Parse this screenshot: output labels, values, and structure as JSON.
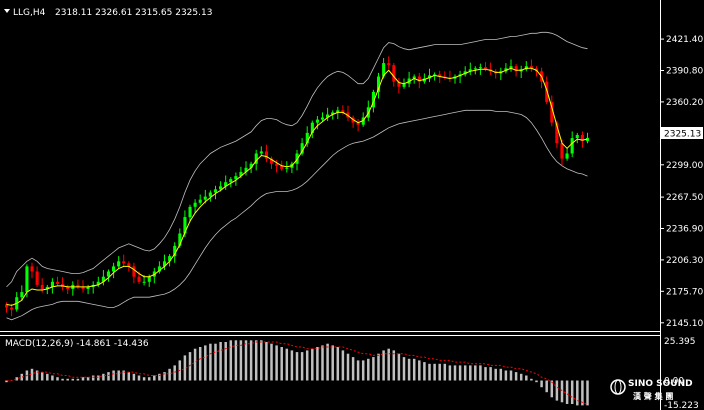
{
  "header": {
    "symbol_tf": "LLG,H4",
    "ohlc": "2318.11 2326.61 2315.65 2325.13"
  },
  "price_axis": {
    "ticks": [
      "2421.40",
      "2390.80",
      "2360.20",
      "2329.60",
      "2299.00",
      "2267.50",
      "2236.90",
      "2206.30",
      "2175.70",
      "2145.10"
    ],
    "current_price_label": "2325.13"
  },
  "macd": {
    "label": "MACD(12,26,9) -14.861 -14.436",
    "ticks": [
      "25.395",
      "0.00",
      "-15.223"
    ]
  },
  "logo": {
    "name": "SINO SOUND",
    "cn": "漢 聲 集 團"
  },
  "colors": {
    "background": "#000000",
    "axis": "#ffffff",
    "bull": "#00ff00",
    "bear": "#ff0000",
    "ma": "#ffff00",
    "bands": "#c0c0c0",
    "macd_hist": "#c0c0c0",
    "macd_signal": "#ff0000"
  },
  "chart_data": [
    {
      "type": "candlestick",
      "title": "LLG,H4",
      "y_range": [
        2140,
        2440
      ],
      "series": {
        "close": [
          2160,
          2158,
          2170,
          2175,
          2200,
          2195,
          2182,
          2178,
          2180,
          2185,
          2183,
          2180,
          2178,
          2182,
          2180,
          2178,
          2180,
          2182,
          2185,
          2190,
          2195,
          2200,
          2205,
          2203,
          2200,
          2190,
          2185,
          2185,
          2190,
          2195,
          2200,
          2205,
          2210,
          2220,
          2232,
          2248,
          2258,
          2262,
          2265,
          2268,
          2272,
          2275,
          2278,
          2282,
          2285,
          2288,
          2292,
          2296,
          2300,
          2310,
          2312,
          2305,
          2300,
          2298,
          2295,
          2296,
          2300,
          2310,
          2320,
          2330,
          2340,
          2343,
          2345,
          2348,
          2350,
          2352,
          2350,
          2345,
          2340,
          2338,
          2345,
          2355,
          2370,
          2385,
          2398,
          2396,
          2380,
          2375,
          2378,
          2383,
          2385,
          2380,
          2383,
          2386,
          2387,
          2385,
          2384,
          2383,
          2385,
          2387,
          2390,
          2392,
          2393,
          2394,
          2392,
          2390,
          2388,
          2390,
          2393,
          2395,
          2390,
          2392,
          2395,
          2393,
          2390,
          2380,
          2360,
          2340,
          2320,
          2305,
          2310,
          2325,
          2328,
          2322,
          2325.13
        ],
        "ma": [
          2163,
          2162,
          2164,
          2167,
          2175,
          2178,
          2177,
          2177,
          2178,
          2180,
          2181,
          2181,
          2180,
          2180,
          2180,
          2180,
          2180,
          2181,
          2182,
          2185,
          2189,
          2194,
          2198,
          2200,
          2200,
          2197,
          2193,
          2190,
          2190,
          2192,
          2196,
          2200,
          2205,
          2212,
          2221,
          2233,
          2244,
          2252,
          2258,
          2263,
          2267,
          2271,
          2274,
          2278,
          2281,
          2284,
          2288,
          2292,
          2296,
          2303,
          2308,
          2307,
          2304,
          2301,
          2298,
          2297,
          2298,
          2304,
          2312,
          2321,
          2331,
          2337,
          2341,
          2345,
          2348,
          2350,
          2350,
          2347,
          2343,
          2340,
          2342,
          2349,
          2360,
          2373,
          2386,
          2391,
          2385,
          2379,
          2378,
          2380,
          2383,
          2381,
          2382,
          2384,
          2386,
          2385,
          2384,
          2383,
          2384,
          2386,
          2388,
          2390,
          2391,
          2392,
          2392,
          2391,
          2389,
          2389,
          2391,
          2393,
          2391,
          2391,
          2393,
          2393,
          2391,
          2385,
          2372,
          2355,
          2337,
          2320,
          2315,
          2320,
          2324,
          2323,
          2324
        ],
        "upper_band": [
          2180,
          2185,
          2195,
          2200,
          2205,
          2208,
          2205,
          2200,
          2198,
          2197,
          2196,
          2195,
          2194,
          2193,
          2193,
          2194,
          2196,
          2198,
          2202,
          2206,
          2210,
          2214,
          2218,
          2220,
          2222,
          2220,
          2218,
          2216,
          2215,
          2217,
          2222,
          2228,
          2236,
          2246,
          2258,
          2272,
          2284,
          2293,
          2300,
          2305,
          2310,
          2313,
          2316,
          2318,
          2320,
          2322,
          2325,
          2328,
          2331,
          2337,
          2342,
          2344,
          2344,
          2343,
          2340,
          2338,
          2337,
          2340,
          2347,
          2356,
          2366,
          2374,
          2380,
          2385,
          2388,
          2390,
          2389,
          2386,
          2382,
          2378,
          2378,
          2383,
          2393,
          2403,
          2413,
          2418,
          2417,
          2414,
          2412,
          2411,
          2412,
          2413,
          2414,
          2415,
          2416,
          2416,
          2416,
          2416,
          2416,
          2416,
          2417,
          2418,
          2419,
          2420,
          2421,
          2421,
          2421,
          2422,
          2423,
          2424,
          2424,
          2425,
          2426,
          2427,
          2427,
          2428,
          2428,
          2427,
          2425,
          2422,
          2419,
          2417,
          2415,
          2413,
          2412
        ],
        "lower_band": [
          2150,
          2148,
          2150,
          2152,
          2155,
          2158,
          2160,
          2161,
          2162,
          2163,
          2165,
          2166,
          2166,
          2166,
          2166,
          2165,
          2164,
          2163,
          2162,
          2161,
          2160,
          2160,
          2162,
          2165,
          2168,
          2170,
          2170,
          2170,
          2170,
          2171,
          2172,
          2173,
          2175,
          2178,
          2182,
          2187,
          2194,
          2202,
          2210,
          2218,
          2225,
          2231,
          2236,
          2240,
          2244,
          2247,
          2251,
          2255,
          2259,
          2264,
          2268,
          2271,
          2272,
          2273,
          2273,
          2273,
          2274,
          2276,
          2279,
          2283,
          2288,
          2293,
          2298,
          2303,
          2308,
          2312,
          2315,
          2318,
          2320,
          2321,
          2322,
          2324,
          2326,
          2329,
          2332,
          2335,
          2337,
          2339,
          2340,
          2341,
          2342,
          2343,
          2344,
          2345,
          2346,
          2347,
          2348,
          2349,
          2350,
          2351,
          2352,
          2352,
          2352,
          2352,
          2352,
          2352,
          2351,
          2351,
          2351,
          2350,
          2349,
          2348,
          2345,
          2340,
          2333,
          2325,
          2316,
          2308,
          2302,
          2298,
          2295,
          2293,
          2291,
          2290,
          2288
        ]
      }
    },
    {
      "type": "bar",
      "title": "MACD(12,26,9) -14.861 -14.436",
      "y_range": [
        -15.223,
        25.395
      ],
      "macd": [
        -1,
        0,
        2,
        4,
        6,
        7,
        6,
        5,
        4,
        3,
        2,
        1,
        1,
        1,
        1,
        2,
        2,
        3,
        3,
        4,
        5,
        6,
        6,
        6,
        5,
        4,
        3,
        2,
        2,
        3,
        4,
        5,
        7,
        9,
        12,
        15,
        17,
        19,
        20,
        21,
        22,
        22,
        23,
        23,
        24,
        24,
        24,
        24,
        24,
        24,
        24,
        23,
        22,
        21,
        20,
        19,
        18,
        17,
        17,
        18,
        19,
        20,
        21,
        22,
        21,
        20,
        18,
        16,
        14,
        12,
        12,
        13,
        14,
        16,
        18,
        19,
        18,
        16,
        14,
        13,
        13,
        12,
        11,
        10,
        10,
        10,
        10,
        9,
        9,
        9,
        9,
        9,
        9,
        9,
        8,
        8,
        7,
        7,
        6,
        6,
        5,
        4,
        3,
        1,
        -1,
        -4,
        -7,
        -10,
        -12,
        -13,
        -14,
        -14,
        -14.861,
        -14.861,
        -14.861
      ],
      "signal": [
        0,
        0,
        1,
        2,
        3,
        4,
        5,
        5,
        5,
        4,
        4,
        3,
        3,
        2,
        2,
        2,
        2,
        2,
        2,
        3,
        3,
        4,
        4,
        5,
        5,
        5,
        4,
        4,
        3,
        3,
        3,
        4,
        4,
        5,
        6,
        7,
        9,
        11,
        13,
        14,
        16,
        17,
        18,
        19,
        20,
        21,
        21,
        22,
        22,
        23,
        23,
        23,
        23,
        23,
        22,
        22,
        21,
        20,
        20,
        19,
        19,
        19,
        20,
        20,
        20,
        20,
        20,
        19,
        18,
        17,
        16,
        16,
        15,
        15,
        16,
        16,
        16,
        16,
        16,
        15,
        15,
        14,
        14,
        13,
        13,
        12,
        12,
        12,
        11,
        11,
        11,
        10,
        10,
        10,
        10,
        9,
        9,
        9,
        8,
        8,
        7,
        7,
        6,
        5,
        4,
        2,
        1,
        -1,
        -4,
        -6,
        -8,
        -10,
        -12,
        -13,
        -14.436
      ]
    }
  ]
}
